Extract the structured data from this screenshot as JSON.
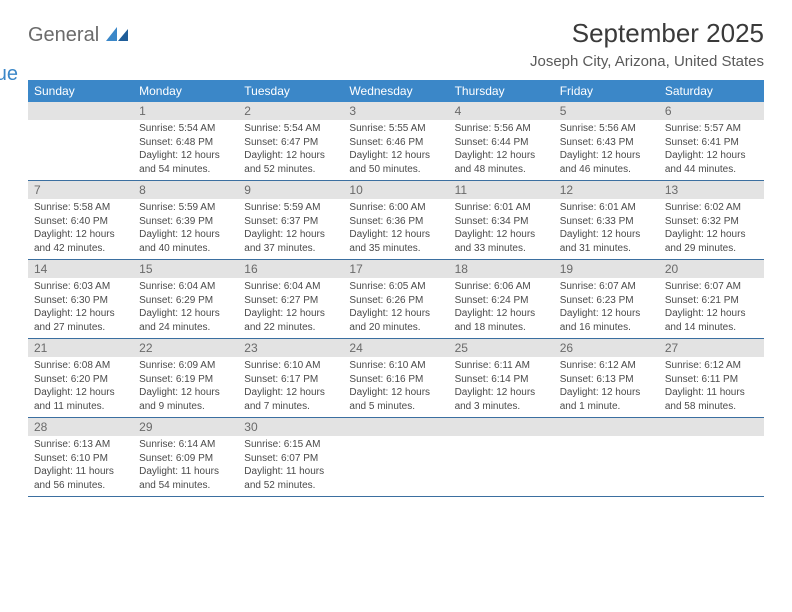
{
  "logo": {
    "word1": "General",
    "word2": "Blue",
    "brand_color": "#3b87c8",
    "gray": "#6b6b6b"
  },
  "title": "September 2025",
  "location": "Joseph City, Arizona, United States",
  "header_bg": "#3b87c8",
  "daynum_bg": "#e3e3e3",
  "week_border": "#3b6fa0",
  "day_names": [
    "Sunday",
    "Monday",
    "Tuesday",
    "Wednesday",
    "Thursday",
    "Friday",
    "Saturday"
  ],
  "weeks": [
    [
      {
        "blank": true
      },
      {
        "n": "1",
        "sunrise": "5:54 AM",
        "sunset": "6:48 PM",
        "daylight": "12 hours and 54 minutes."
      },
      {
        "n": "2",
        "sunrise": "5:54 AM",
        "sunset": "6:47 PM",
        "daylight": "12 hours and 52 minutes."
      },
      {
        "n": "3",
        "sunrise": "5:55 AM",
        "sunset": "6:46 PM",
        "daylight": "12 hours and 50 minutes."
      },
      {
        "n": "4",
        "sunrise": "5:56 AM",
        "sunset": "6:44 PM",
        "daylight": "12 hours and 48 minutes."
      },
      {
        "n": "5",
        "sunrise": "5:56 AM",
        "sunset": "6:43 PM",
        "daylight": "12 hours and 46 minutes."
      },
      {
        "n": "6",
        "sunrise": "5:57 AM",
        "sunset": "6:41 PM",
        "daylight": "12 hours and 44 minutes."
      }
    ],
    [
      {
        "n": "7",
        "sunrise": "5:58 AM",
        "sunset": "6:40 PM",
        "daylight": "12 hours and 42 minutes."
      },
      {
        "n": "8",
        "sunrise": "5:59 AM",
        "sunset": "6:39 PM",
        "daylight": "12 hours and 40 minutes."
      },
      {
        "n": "9",
        "sunrise": "5:59 AM",
        "sunset": "6:37 PM",
        "daylight": "12 hours and 37 minutes."
      },
      {
        "n": "10",
        "sunrise": "6:00 AM",
        "sunset": "6:36 PM",
        "daylight": "12 hours and 35 minutes."
      },
      {
        "n": "11",
        "sunrise": "6:01 AM",
        "sunset": "6:34 PM",
        "daylight": "12 hours and 33 minutes."
      },
      {
        "n": "12",
        "sunrise": "6:01 AM",
        "sunset": "6:33 PM",
        "daylight": "12 hours and 31 minutes."
      },
      {
        "n": "13",
        "sunrise": "6:02 AM",
        "sunset": "6:32 PM",
        "daylight": "12 hours and 29 minutes."
      }
    ],
    [
      {
        "n": "14",
        "sunrise": "6:03 AM",
        "sunset": "6:30 PM",
        "daylight": "12 hours and 27 minutes."
      },
      {
        "n": "15",
        "sunrise": "6:04 AM",
        "sunset": "6:29 PM",
        "daylight": "12 hours and 24 minutes."
      },
      {
        "n": "16",
        "sunrise": "6:04 AM",
        "sunset": "6:27 PM",
        "daylight": "12 hours and 22 minutes."
      },
      {
        "n": "17",
        "sunrise": "6:05 AM",
        "sunset": "6:26 PM",
        "daylight": "12 hours and 20 minutes."
      },
      {
        "n": "18",
        "sunrise": "6:06 AM",
        "sunset": "6:24 PM",
        "daylight": "12 hours and 18 minutes."
      },
      {
        "n": "19",
        "sunrise": "6:07 AM",
        "sunset": "6:23 PM",
        "daylight": "12 hours and 16 minutes."
      },
      {
        "n": "20",
        "sunrise": "6:07 AM",
        "sunset": "6:21 PM",
        "daylight": "12 hours and 14 minutes."
      }
    ],
    [
      {
        "n": "21",
        "sunrise": "6:08 AM",
        "sunset": "6:20 PM",
        "daylight": "12 hours and 11 minutes."
      },
      {
        "n": "22",
        "sunrise": "6:09 AM",
        "sunset": "6:19 PM",
        "daylight": "12 hours and 9 minutes."
      },
      {
        "n": "23",
        "sunrise": "6:10 AM",
        "sunset": "6:17 PM",
        "daylight": "12 hours and 7 minutes."
      },
      {
        "n": "24",
        "sunrise": "6:10 AM",
        "sunset": "6:16 PM",
        "daylight": "12 hours and 5 minutes."
      },
      {
        "n": "25",
        "sunrise": "6:11 AM",
        "sunset": "6:14 PM",
        "daylight": "12 hours and 3 minutes."
      },
      {
        "n": "26",
        "sunrise": "6:12 AM",
        "sunset": "6:13 PM",
        "daylight": "12 hours and 1 minute."
      },
      {
        "n": "27",
        "sunrise": "6:12 AM",
        "sunset": "6:11 PM",
        "daylight": "11 hours and 58 minutes."
      }
    ],
    [
      {
        "n": "28",
        "sunrise": "6:13 AM",
        "sunset": "6:10 PM",
        "daylight": "11 hours and 56 minutes."
      },
      {
        "n": "29",
        "sunrise": "6:14 AM",
        "sunset": "6:09 PM",
        "daylight": "11 hours and 54 minutes."
      },
      {
        "n": "30",
        "sunrise": "6:15 AM",
        "sunset": "6:07 PM",
        "daylight": "11 hours and 52 minutes."
      },
      {
        "blank": true
      },
      {
        "blank": true
      },
      {
        "blank": true
      },
      {
        "blank": true
      }
    ]
  ],
  "labels": {
    "sunrise": "Sunrise:",
    "sunset": "Sunset:",
    "daylight": "Daylight:"
  }
}
